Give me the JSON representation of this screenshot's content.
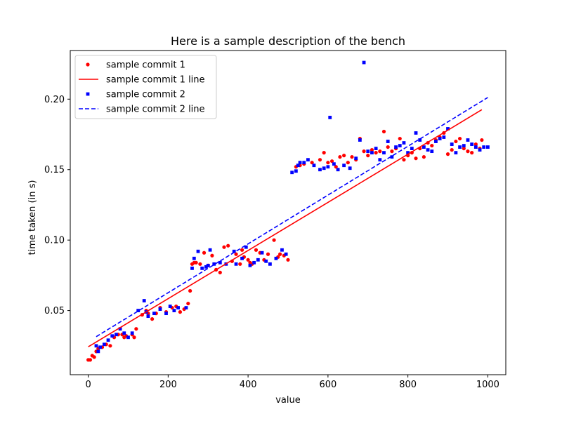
{
  "chart_data": {
    "type": "scatter",
    "title": "Here is a sample description of the bench",
    "xlabel": "value",
    "ylabel": "time taken (in s)",
    "xlim": [
      -45,
      1045
    ],
    "ylim": [
      0.0045,
      0.2345
    ],
    "xticks": [
      0,
      200,
      400,
      600,
      800,
      1000
    ],
    "yticks": [
      0.05,
      0.1,
      0.15,
      0.2
    ],
    "ytick_labels": [
      "0.05",
      "0.10",
      "0.15",
      "0.20"
    ],
    "grid": false,
    "legend_position": "top-left",
    "series": [
      {
        "name": "sample commit 1",
        "color": "#ff0000",
        "marker": "circle",
        "line_name": "sample commit 1 line",
        "line_style": "solid",
        "line": {
          "x0": 0,
          "y0": 0.0243,
          "x1": 985,
          "y1": 0.1925
        },
        "points": [
          [
            0,
            0.015
          ],
          [
            5,
            0.015
          ],
          [
            10,
            0.018
          ],
          [
            15,
            0.017
          ],
          [
            20,
            0.021
          ],
          [
            25,
            0.023
          ],
          [
            35,
            0.024
          ],
          [
            45,
            0.026
          ],
          [
            55,
            0.025
          ],
          [
            65,
            0.031
          ],
          [
            75,
            0.033
          ],
          [
            85,
            0.033
          ],
          [
            90,
            0.031
          ],
          [
            95,
            0.032
          ],
          [
            110,
            0.033
          ],
          [
            115,
            0.031
          ],
          [
            120,
            0.037
          ],
          [
            135,
            0.047
          ],
          [
            145,
            0.05
          ],
          [
            150,
            0.048
          ],
          [
            160,
            0.044
          ],
          [
            170,
            0.048
          ],
          [
            180,
            0.052
          ],
          [
            195,
            0.049
          ],
          [
            210,
            0.052
          ],
          [
            220,
            0.053
          ],
          [
            230,
            0.049
          ],
          [
            240,
            0.051
          ],
          [
            250,
            0.055
          ],
          [
            255,
            0.064
          ],
          [
            260,
            0.083
          ],
          [
            265,
            0.084
          ],
          [
            270,
            0.084
          ],
          [
            280,
            0.083
          ],
          [
            290,
            0.091
          ],
          [
            300,
            0.082
          ],
          [
            310,
            0.089
          ],
          [
            320,
            0.079
          ],
          [
            330,
            0.077
          ],
          [
            340,
            0.095
          ],
          [
            350,
            0.096
          ],
          [
            360,
            0.085
          ],
          [
            370,
            0.09
          ],
          [
            380,
            0.083
          ],
          [
            385,
            0.093
          ],
          [
            390,
            0.088
          ],
          [
            400,
            0.086
          ],
          [
            405,
            0.084
          ],
          [
            410,
            0.083
          ],
          [
            420,
            0.093
          ],
          [
            430,
            0.091
          ],
          [
            440,
            0.086
          ],
          [
            450,
            0.09
          ],
          [
            465,
            0.1
          ],
          [
            475,
            0.088
          ],
          [
            480,
            0.09
          ],
          [
            490,
            0.089
          ],
          [
            500,
            0.086
          ],
          [
            520,
            0.152
          ],
          [
            530,
            0.153
          ],
          [
            540,
            0.154
          ],
          [
            560,
            0.155
          ],
          [
            580,
            0.157
          ],
          [
            590,
            0.162
          ],
          [
            600,
            0.155
          ],
          [
            610,
            0.156
          ],
          [
            620,
            0.152
          ],
          [
            630,
            0.159
          ],
          [
            640,
            0.16
          ],
          [
            650,
            0.155
          ],
          [
            660,
            0.159
          ],
          [
            670,
            0.157
          ],
          [
            680,
            0.172
          ],
          [
            690,
            0.163
          ],
          [
            700,
            0.16
          ],
          [
            710,
            0.164
          ],
          [
            720,
            0.162
          ],
          [
            730,
            0.163
          ],
          [
            740,
            0.177
          ],
          [
            750,
            0.166
          ],
          [
            760,
            0.163
          ],
          [
            770,
            0.165
          ],
          [
            780,
            0.172
          ],
          [
            790,
            0.157
          ],
          [
            800,
            0.16
          ],
          [
            810,
            0.162
          ],
          [
            820,
            0.158
          ],
          [
            830,
            0.165
          ],
          [
            840,
            0.159
          ],
          [
            850,
            0.169
          ],
          [
            860,
            0.167
          ],
          [
            870,
            0.171
          ],
          [
            880,
            0.173
          ],
          [
            890,
            0.176
          ],
          [
            900,
            0.161
          ],
          [
            910,
            0.164
          ],
          [
            920,
            0.17
          ],
          [
            930,
            0.172
          ],
          [
            940,
            0.165
          ],
          [
            950,
            0.163
          ],
          [
            960,
            0.162
          ],
          [
            970,
            0.168
          ],
          [
            980,
            0.165
          ],
          [
            985,
            0.171
          ]
        ]
      },
      {
        "name": "sample commit 2",
        "color": "#0000ff",
        "marker": "square",
        "line_name": "sample commit 2 line",
        "line_style": "dashed",
        "line": {
          "x0": 20,
          "y0": 0.0315,
          "x1": 1000,
          "y1": 0.2012
        },
        "points": [
          [
            20,
            0.025
          ],
          [
            25,
            0.021
          ],
          [
            30,
            0.024
          ],
          [
            40,
            0.026
          ],
          [
            50,
            0.029
          ],
          [
            60,
            0.032
          ],
          [
            70,
            0.033
          ],
          [
            80,
            0.037
          ],
          [
            90,
            0.034
          ],
          [
            100,
            0.031
          ],
          [
            110,
            0.034
          ],
          [
            125,
            0.05
          ],
          [
            140,
            0.057
          ],
          [
            145,
            0.049
          ],
          [
            150,
            0.046
          ],
          [
            165,
            0.048
          ],
          [
            180,
            0.051
          ],
          [
            195,
            0.048
          ],
          [
            205,
            0.053
          ],
          [
            215,
            0.05
          ],
          [
            225,
            0.052
          ],
          [
            245,
            0.052
          ],
          [
            260,
            0.08
          ],
          [
            265,
            0.087
          ],
          [
            275,
            0.092
          ],
          [
            285,
            0.08
          ],
          [
            295,
            0.081
          ],
          [
            300,
            0.082
          ],
          [
            305,
            0.093
          ],
          [
            315,
            0.083
          ],
          [
            330,
            0.084
          ],
          [
            345,
            0.083
          ],
          [
            365,
            0.092
          ],
          [
            370,
            0.083
          ],
          [
            385,
            0.087
          ],
          [
            395,
            0.095
          ],
          [
            405,
            0.082
          ],
          [
            415,
            0.084
          ],
          [
            425,
            0.086
          ],
          [
            435,
            0.091
          ],
          [
            445,
            0.085
          ],
          [
            455,
            0.083
          ],
          [
            470,
            0.087
          ],
          [
            485,
            0.093
          ],
          [
            495,
            0.09
          ],
          [
            510,
            0.148
          ],
          [
            520,
            0.149
          ],
          [
            525,
            0.153
          ],
          [
            530,
            0.155
          ],
          [
            540,
            0.155
          ],
          [
            550,
            0.157
          ],
          [
            565,
            0.153
          ],
          [
            580,
            0.15
          ],
          [
            590,
            0.151
          ],
          [
            600,
            0.152
          ],
          [
            605,
            0.187
          ],
          [
            615,
            0.154
          ],
          [
            625,
            0.15
          ],
          [
            640,
            0.153
          ],
          [
            655,
            0.151
          ],
          [
            670,
            0.158
          ],
          [
            680,
            0.171
          ],
          [
            690,
            0.226
          ],
          [
            700,
            0.163
          ],
          [
            710,
            0.162
          ],
          [
            720,
            0.165
          ],
          [
            730,
            0.157
          ],
          [
            740,
            0.162
          ],
          [
            750,
            0.17
          ],
          [
            760,
            0.159
          ],
          [
            770,
            0.166
          ],
          [
            780,
            0.167
          ],
          [
            790,
            0.169
          ],
          [
            800,
            0.162
          ],
          [
            810,
            0.165
          ],
          [
            820,
            0.176
          ],
          [
            830,
            0.171
          ],
          [
            840,
            0.166
          ],
          [
            850,
            0.164
          ],
          [
            860,
            0.163
          ],
          [
            870,
            0.17
          ],
          [
            880,
            0.172
          ],
          [
            890,
            0.173
          ],
          [
            900,
            0.179
          ],
          [
            910,
            0.168
          ],
          [
            920,
            0.162
          ],
          [
            930,
            0.166
          ],
          [
            940,
            0.167
          ],
          [
            950,
            0.171
          ],
          [
            960,
            0.168
          ],
          [
            970,
            0.166
          ],
          [
            980,
            0.164
          ],
          [
            990,
            0.166
          ],
          [
            1000,
            0.166
          ]
        ]
      }
    ]
  }
}
